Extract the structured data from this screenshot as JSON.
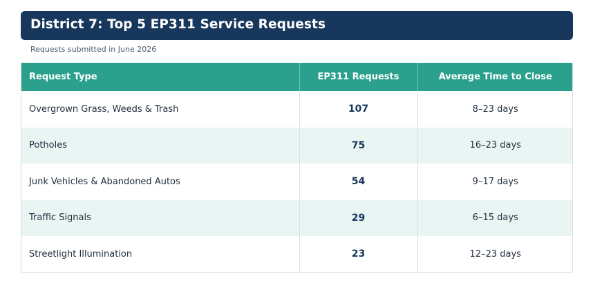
{
  "header": {
    "title": "District 7: Top 5 EP311 Service Requests",
    "subtitle": "Requests submitted in June 2026"
  },
  "table": {
    "columns": [
      "Request Type",
      "EP311 Requests",
      "Average Time to Close"
    ],
    "rows": [
      {
        "type": "Overgrown Grass, Weeds & Trash",
        "requests": "107",
        "time": "8–23 days"
      },
      {
        "type": "Potholes",
        "requests": "75",
        "time": "16–23 days"
      },
      {
        "type": "Junk Vehicles & Abandoned Autos",
        "requests": "54",
        "time": "9–17 days"
      },
      {
        "type": "Traffic Signals",
        "requests": "29",
        "time": "6–15 days"
      },
      {
        "type": "Streetlight Illumination",
        "requests": "23",
        "time": "12–23 days"
      }
    ]
  },
  "colors": {
    "title_bar": "#17375c",
    "header_row": "#2ba08d",
    "alt_row": "#e8f5f2"
  }
}
